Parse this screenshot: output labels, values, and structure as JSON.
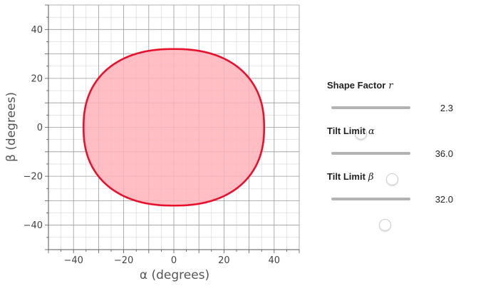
{
  "chart_data": {
    "type": "area",
    "title": "",
    "xlabel": "α (degrees)",
    "ylabel": "β (degrees)",
    "xlim": [
      -50,
      50
    ],
    "ylim": [
      -50,
      50
    ],
    "xticks": [
      -40,
      -20,
      0,
      20,
      40
    ],
    "yticks": [
      -40,
      -20,
      0,
      20,
      40
    ],
    "xtick_labels": [
      "−40",
      "−20",
      "0",
      "20",
      "40"
    ],
    "ytick_labels": [
      "−40",
      "−20",
      "0",
      "20",
      "40"
    ],
    "grid": true,
    "minor_grid_step": 5,
    "shape": "superellipse |x/a|^r + |y/b|^r = 1",
    "a": 36.0,
    "b": 32.0,
    "r": 2.3,
    "fill_color": "#ffb3ba",
    "line_color": "#e8112d"
  },
  "controls": [
    {
      "label": "Shape Factor",
      "symbol": "r",
      "value": "2.3",
      "position": 0.37
    },
    {
      "label": "Tilt Limit",
      "symbol": "α",
      "value": "36.0",
      "position": 0.77
    },
    {
      "label": "Tilt Limit",
      "symbol": "β",
      "value": "32.0",
      "position": 0.68
    }
  ]
}
